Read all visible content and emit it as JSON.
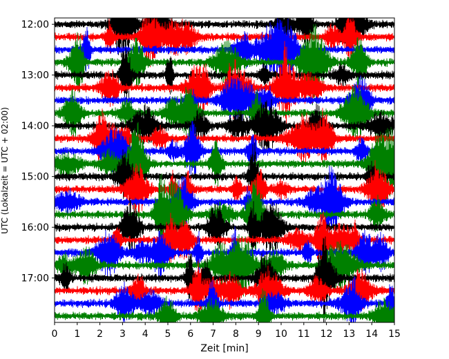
{
  "chart_data": {
    "type": "line",
    "title": "",
    "xlabel": "Zeit  [min]",
    "ylabel": "UTC (Lokalzeit = UTC + 02:00)",
    "xlim": [
      0,
      15
    ],
    "x_ticks": [
      "0",
      "1",
      "2",
      "3",
      "4",
      "5",
      "6",
      "7",
      "8",
      "9",
      "10",
      "11",
      "12",
      "13",
      "14",
      "15"
    ],
    "y_ticks": [
      "12:00",
      "13:00",
      "14:00",
      "15:00",
      "16:00",
      "17:00"
    ],
    "y_tick_rows": [
      0,
      4,
      8,
      12,
      16,
      20
    ],
    "time_range": [
      "11:55",
      "17:55"
    ],
    "row_interval_minutes": 15,
    "row_count": 24,
    "series_colors": [
      "#000000",
      "#ff0000",
      "#0000ff",
      "#008000"
    ],
    "grid": false,
    "legend": "none"
  }
}
